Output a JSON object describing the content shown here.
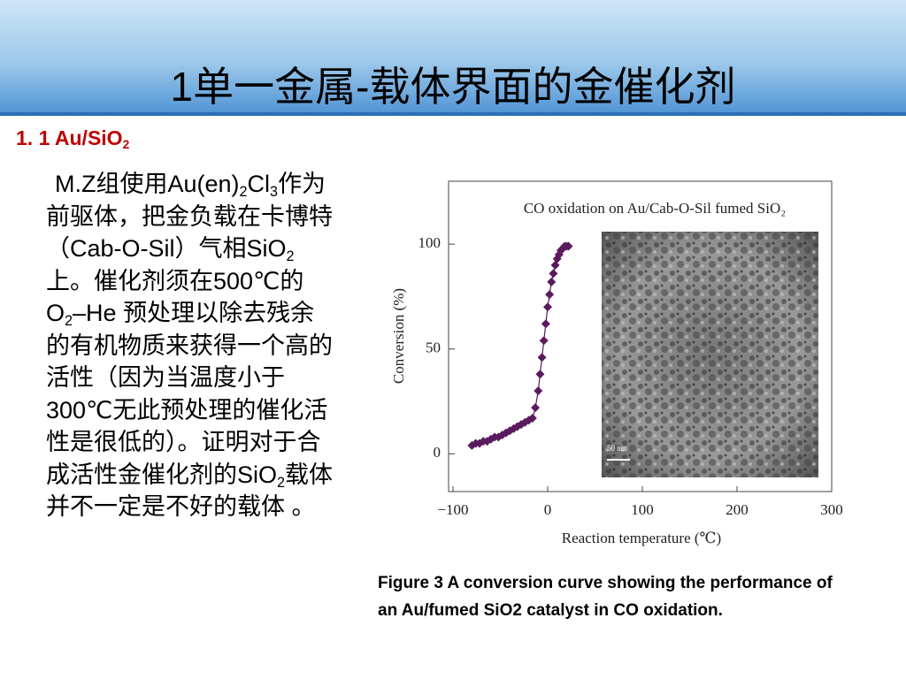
{
  "slide": {
    "title": "1单一金属-载体界面的金催化剂",
    "section": [
      {
        "t": "1. 1   Au/SiO"
      },
      {
        "t": "2",
        "sub": true
      }
    ],
    "body": [
      {
        "t": "M.Z组使用Au(en)"
      },
      {
        "t": "2",
        "sub": true
      },
      {
        "t": "Cl"
      },
      {
        "t": "3",
        "sub": true
      },
      {
        "t": "作为前驱体，把金负载在卡博特（Cab-O-Sil）气相SiO"
      },
      {
        "t": "2",
        "sub": true
      },
      {
        "t": "上。催化剂须在500℃的O"
      },
      {
        "t": "2",
        "sub": true
      },
      {
        "t": "–He 预处理以除去残余的有机物质来获得一个高的活性（因为当温度小于300℃无此预处理的催化活性是很低的）。证明对于合成活性金催化剂的SiO"
      },
      {
        "t": "2",
        "sub": true
      },
      {
        "t": "载体并不一定是不好的载体 。"
      }
    ],
    "caption": "Figure 3 A conversion curve showing the performance of an Au/fumed SiO2 catalyst in CO oxidation."
  },
  "chart_data": {
    "type": "line",
    "title": "CO oxidation on Au/Cab-O-Sil fumed SiO₂",
    "x_label": "Reaction temperature (℃)",
    "y_label": "Conversion (%)",
    "inset_label": "50 nm",
    "x": [
      -80,
      -76,
      -72,
      -68,
      -64,
      -60,
      -56,
      -52,
      -48,
      -44,
      -40,
      -36,
      -32,
      -28,
      -24,
      -20,
      -16,
      -13,
      -10,
      -8,
      -6,
      -4,
      -2,
      0,
      2,
      4,
      6,
      8,
      10,
      12,
      14,
      16,
      18,
      20,
      22
    ],
    "series": [
      {
        "color": "#5a1a5e",
        "values": [
          4,
          5,
          5,
          6,
          6,
          7,
          8,
          8,
          9,
          10,
          11,
          12,
          13,
          14,
          15,
          16,
          17,
          22,
          30,
          38,
          46,
          54,
          62,
          70,
          76,
          82,
          86,
          90,
          93,
          95,
          97,
          98,
          99,
          99,
          99
        ]
      }
    ],
    "xlim": [
      -100,
      300
    ],
    "ylim": [
      -18,
      130
    ],
    "xticks": [
      {
        "value": -100,
        "label": "−100"
      },
      0,
      100,
      200,
      300
    ],
    "yticks": [
      0,
      50,
      100
    ]
  }
}
